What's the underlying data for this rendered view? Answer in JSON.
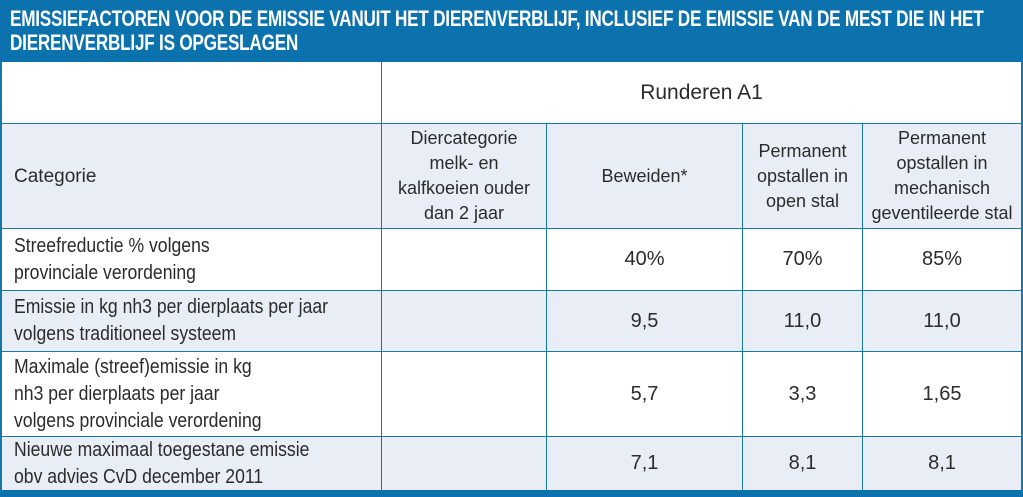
{
  "colors": {
    "brand_blue": "#0c72ae",
    "row_alt": "#e9eef6",
    "grid": "#1578a6",
    "text": "#2b2b2b"
  },
  "title": {
    "line1": "EMISSIEFACTOREN VOOR DE EMISSIE VANUIT HET DIERENVERBLIJF, INCLUSIEF DE EMISSIE VAN DE MEST DIE IN HET",
    "line2": "DIERENVERBLIJF IS OPGESLAGEN"
  },
  "table": {
    "group_header": "Runderen A1",
    "columns": {
      "categorie": "Categorie",
      "diercategorie": "Diercategorie\nmelk- en\nkalfkoeien ouder\ndan 2 jaar",
      "beweiden": "Beweiden*",
      "open_stal": "Permanent\nopstallen in\nopen stal",
      "mechanisch": "Permanent\nopstallen in\nmechanisch\ngeventileerde stal"
    },
    "rows": [
      {
        "label": "Streefreductie % volgens\nprovinciale verordening",
        "diercategorie": "",
        "beweiden": "40%",
        "open_stal": "70%",
        "mechanisch": "85%"
      },
      {
        "label": "Emissie in kg nh3 per dierplaats per jaar\nvolgens traditioneel systeem",
        "diercategorie": "",
        "beweiden": "9,5",
        "open_stal": "11,0",
        "mechanisch": "11,0"
      },
      {
        "label": "Maximale (streef)emissie in kg\nnh3 per dierplaats per jaar\nvolgens provinciale verordening",
        "diercategorie": "",
        "beweiden": "5,7",
        "open_stal": "3,3",
        "mechanisch": "1,65"
      },
      {
        "label": "Nieuwe maximaal toegestane emissie\nobv advies CvD december 2011",
        "diercategorie": "",
        "beweiden": "7,1",
        "open_stal": "8,1",
        "mechanisch": "8,1"
      }
    ]
  }
}
